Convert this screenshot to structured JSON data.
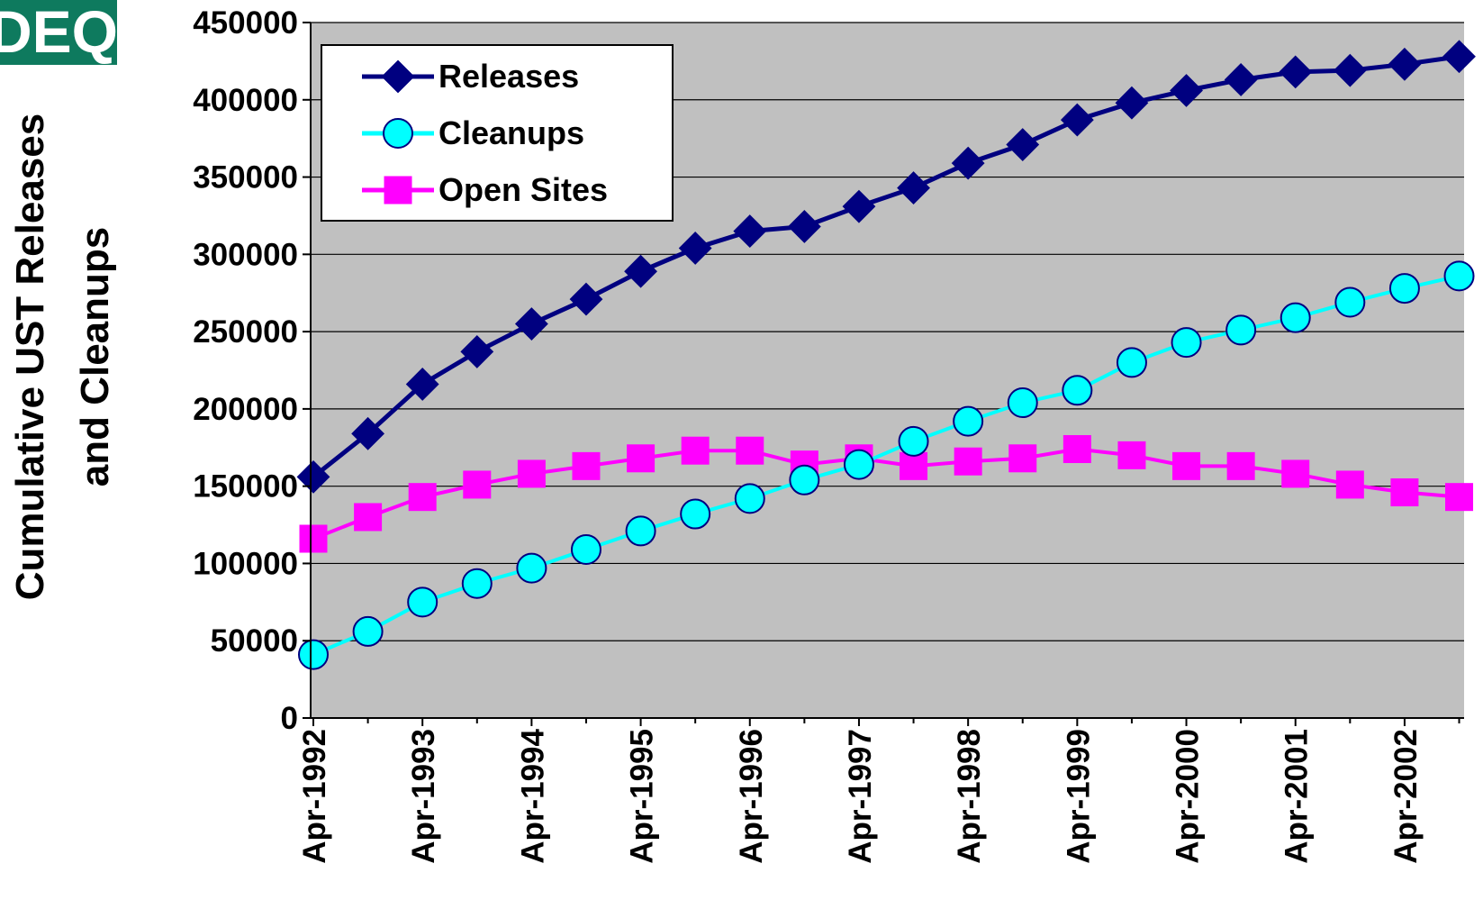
{
  "logo": {
    "text": "DEQ",
    "color": "#0E7A5E"
  },
  "chart_data": {
    "type": "line",
    "title": "",
    "ylabel": "Cumulative UST Releases and Cleanups",
    "ylabel_lines": [
      "Cumulative UST Releases",
      "and Cleanups"
    ],
    "xlabel": "",
    "ylim": [
      0,
      450000
    ],
    "yticks": [
      0,
      50000,
      100000,
      150000,
      200000,
      250000,
      300000,
      350000,
      400000,
      450000
    ],
    "ytick_labels": [
      "0",
      "50000",
      "100000",
      "150000",
      "200000",
      "250000",
      "300000",
      "350000",
      "400000",
      "450000"
    ],
    "x": [
      "Apr-1992",
      "Oct-1992",
      "Apr-1993",
      "Oct-1993",
      "Apr-1994",
      "Oct-1994",
      "Apr-1995",
      "Oct-1995",
      "Apr-1996",
      "Oct-1996",
      "Apr-1997",
      "Oct-1997",
      "Apr-1998",
      "Oct-1998",
      "Apr-1999",
      "Oct-1999",
      "Apr-2000",
      "Oct-2000",
      "Apr-2001",
      "Oct-2001",
      "Apr-2002",
      "Oct-2002"
    ],
    "xtick_labels": [
      "Apr-1992",
      "Apr-1993",
      "Apr-1994",
      "Apr-1995",
      "Apr-1996",
      "Apr-1997",
      "Apr-1998",
      "Apr-1999",
      "Apr-2000",
      "Apr-2001",
      "Apr-2002"
    ],
    "grid": true,
    "legend_position": "top-left",
    "plot_background": "#C0C0C0",
    "series": [
      {
        "name": "Releases",
        "marker": "diamond",
        "color": "#000080",
        "values": [
          156000,
          184000,
          216000,
          237000,
          255000,
          271000,
          289000,
          304000,
          315000,
          318000,
          331000,
          343000,
          359000,
          371000,
          387000,
          398000,
          406000,
          413000,
          418000,
          419000,
          423000,
          428000
        ]
      },
      {
        "name": "Cleanups",
        "marker": "circle",
        "color": "#00FFFF",
        "values": [
          41000,
          56000,
          75000,
          87000,
          97000,
          109000,
          121000,
          132000,
          142000,
          154000,
          164000,
          179000,
          192000,
          204000,
          212000,
          230000,
          243000,
          251000,
          259000,
          269000,
          278000,
          286000
        ]
      },
      {
        "name": "Open Sites",
        "marker": "square",
        "color": "#FF00FF",
        "values": [
          116000,
          130000,
          143000,
          151000,
          158000,
          163000,
          168000,
          173000,
          173000,
          164000,
          168000,
          163000,
          166000,
          168000,
          174000,
          170000,
          163000,
          163000,
          158000,
          151000,
          146000,
          143000
        ]
      }
    ]
  }
}
